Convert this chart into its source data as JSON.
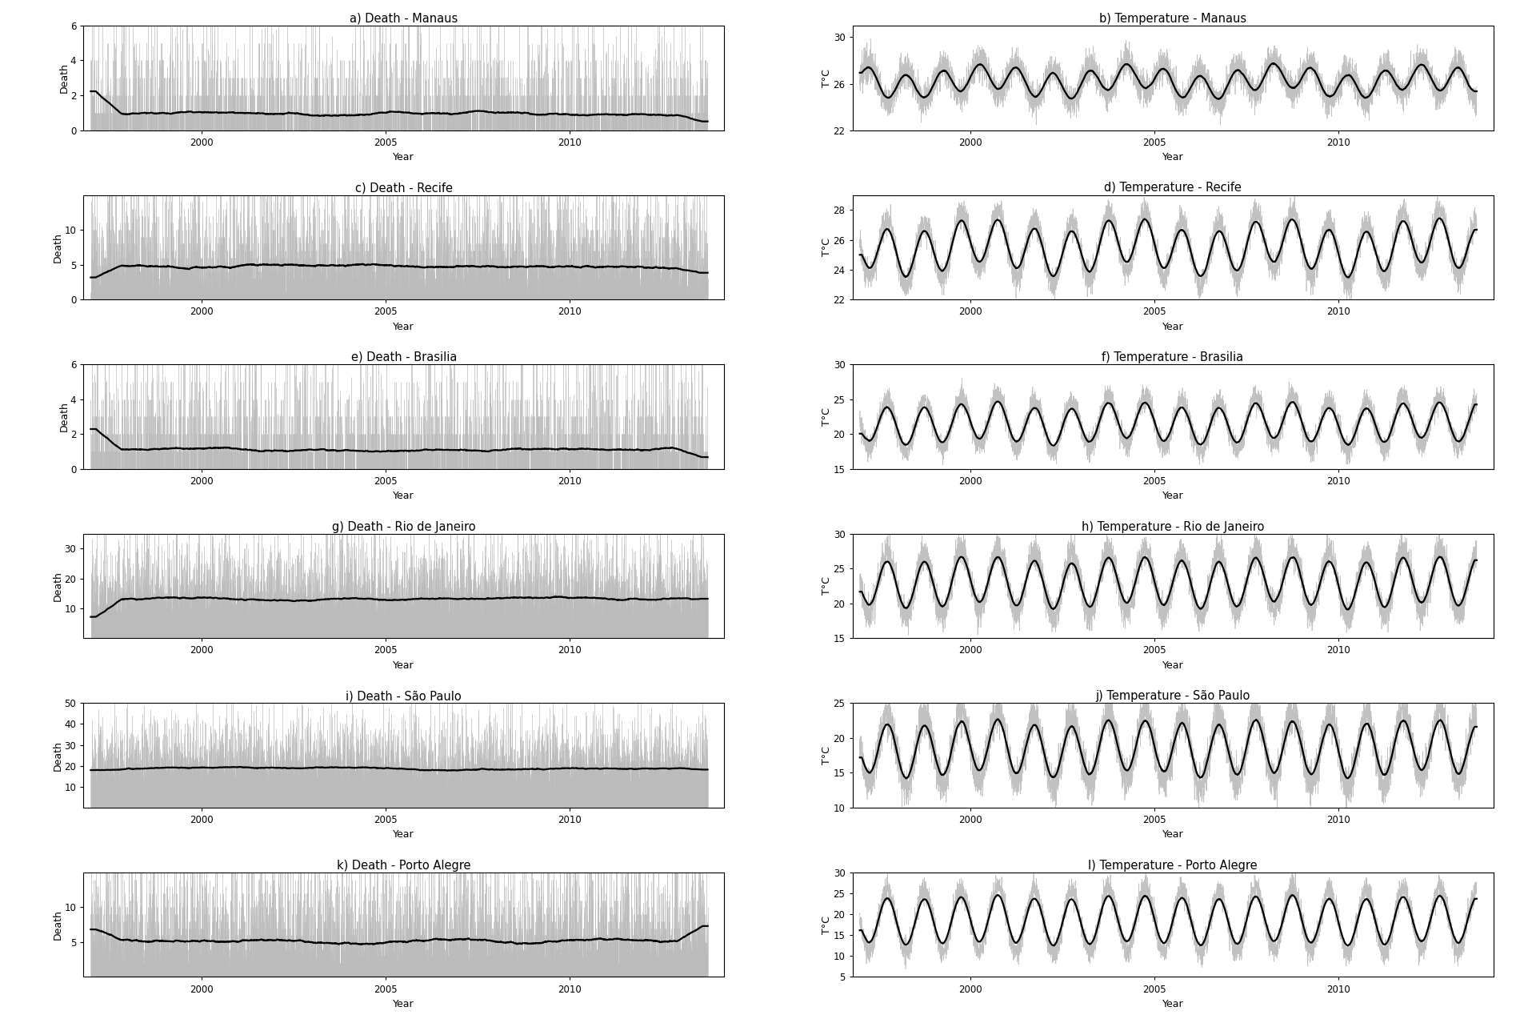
{
  "panels": [
    {
      "title": "a) Death - Manaus",
      "ylabel": "Death",
      "xlabel": "Year",
      "type": "death",
      "ylim": [
        0,
        6
      ],
      "yticks": [
        0,
        2,
        4,
        6
      ],
      "base_rate": 0.8,
      "seasonal_amp": 0.0,
      "noise_shape": 0.6,
      "spike_prob": 0.05,
      "spike_max": 4.0,
      "smooth_base": 0.7,
      "smooth_amp": 0.15,
      "smooth_period": 3.0
    },
    {
      "title": "b) Temperature - Manaus",
      "ylabel": "T°C",
      "xlabel": "Year",
      "type": "temperature",
      "ylim": [
        22,
        31
      ],
      "yticks": [
        22,
        26,
        30
      ],
      "temp_base": 26.2,
      "seasonal_amp": 1.4,
      "noise_std": 1.2,
      "smooth_amp": 1.3,
      "phase": 0.0
    },
    {
      "title": "c) Death - Recife",
      "ylabel": "Death",
      "xlabel": "Year",
      "type": "death",
      "ylim": [
        0,
        15
      ],
      "yticks": [
        0,
        5,
        10
      ],
      "base_rate": 4.5,
      "seasonal_amp": 0.5,
      "noise_shape": 1.5,
      "spike_prob": 0.04,
      "spike_max": 10.0,
      "smooth_base": 4.8,
      "smooth_amp": 0.4,
      "smooth_period": 2.5
    },
    {
      "title": "d) Temperature - Recife",
      "ylabel": "T°C",
      "xlabel": "Year",
      "type": "temperature",
      "ylim": [
        22,
        29
      ],
      "yticks": [
        22,
        24,
        26,
        28
      ],
      "temp_base": 25.5,
      "seasonal_amp": 2.0,
      "noise_std": 0.8,
      "smooth_amp": 2.0,
      "phase": 3.14159
    },
    {
      "title": "e) Death - Brasilia",
      "ylabel": "Death",
      "xlabel": "Year",
      "type": "death",
      "ylim": [
        0,
        6
      ],
      "yticks": [
        0,
        2,
        4,
        6
      ],
      "base_rate": 1.0,
      "seasonal_amp": 0.1,
      "noise_shape": 0.7,
      "spike_prob": 0.04,
      "spike_max": 4.5,
      "smooth_base": 1.0,
      "smooth_amp": 0.1,
      "smooth_period": 3.0
    },
    {
      "title": "f) Temperature - Brasilia",
      "ylabel": "T°C",
      "xlabel": "Year",
      "type": "temperature",
      "ylim": [
        15,
        30
      ],
      "yticks": [
        15,
        20,
        25,
        30
      ],
      "temp_base": 21.5,
      "seasonal_amp": 3.5,
      "noise_std": 1.5,
      "smooth_amp": 3.5,
      "phase": 3.14159
    },
    {
      "title": "g) Death - Rio de Janeiro",
      "ylabel": "Death",
      "xlabel": "Year",
      "type": "death",
      "ylim": [
        0,
        35
      ],
      "yticks": [
        10,
        20,
        30
      ],
      "base_rate": 13.0,
      "seasonal_amp": 2.5,
      "noise_shape": 3.5,
      "spike_prob": 0.03,
      "spike_max": 20.0,
      "smooth_base": 13.0,
      "smooth_amp": 2.0,
      "smooth_period": 1.0
    },
    {
      "title": "h) Temperature - Rio de Janeiro",
      "ylabel": "T°C",
      "xlabel": "Year",
      "type": "temperature",
      "ylim": [
        15,
        30
      ],
      "yticks": [
        15,
        20,
        25,
        30
      ],
      "temp_base": 23.0,
      "seasonal_amp": 4.5,
      "noise_std": 2.0,
      "smooth_amp": 4.5,
      "phase": 3.14159
    },
    {
      "title": "i) Death - São Paulo",
      "ylabel": "Death",
      "xlabel": "Year",
      "type": "death",
      "ylim": [
        0,
        50
      ],
      "yticks": [
        10,
        20,
        30,
        40,
        50
      ],
      "base_rate": 18.0,
      "seasonal_amp": 3.0,
      "noise_shape": 5.0,
      "spike_prob": 0.03,
      "spike_max": 30.0,
      "smooth_base": 18.0,
      "smooth_amp": 2.5,
      "smooth_period": 1.0
    },
    {
      "title": "j) Temperature - São Paulo",
      "ylabel": "T°C",
      "xlabel": "Year",
      "type": "temperature",
      "ylim": [
        10,
        25
      ],
      "yticks": [
        10,
        15,
        20,
        25
      ],
      "temp_base": 18.5,
      "seasonal_amp": 5.0,
      "noise_std": 2.5,
      "smooth_amp": 5.0,
      "phase": 3.14159
    },
    {
      "title": "k) Death - Porto Alegre",
      "ylabel": "Death",
      "xlabel": "Year",
      "type": "death",
      "ylim": [
        0,
        15
      ],
      "yticks": [
        5,
        10
      ],
      "base_rate": 5.0,
      "seasonal_amp": 0.8,
      "noise_shape": 1.5,
      "spike_prob": 0.04,
      "spike_max": 10.0,
      "smooth_base": 5.0,
      "smooth_amp": 0.5,
      "smooth_period": 2.5
    },
    {
      "title": "l) Temperature - Porto Alegre",
      "ylabel": "T°C",
      "xlabel": "Year",
      "type": "temperature",
      "ylim": [
        5,
        30
      ],
      "yticks": [
        5,
        10,
        15,
        20,
        25,
        30
      ],
      "temp_base": 18.5,
      "seasonal_amp": 7.5,
      "noise_std": 2.5,
      "smooth_amp": 7.5,
      "phase": 3.14159
    }
  ],
  "x_start_year": 1997.0,
  "x_end_year": 2013.75,
  "n_days": 6117,
  "xmin": 1996.8,
  "xmax": 2014.2,
  "xtick_years": [
    2000,
    2005,
    2010
  ],
  "bg_color": "white",
  "raw_color": "#bbbbbb",
  "smooth_color": "black",
  "raw_lw": 0.5,
  "smooth_lw": 1.6,
  "title_fontsize": 10.5,
  "label_fontsize": 9,
  "tick_fontsize": 8.5
}
